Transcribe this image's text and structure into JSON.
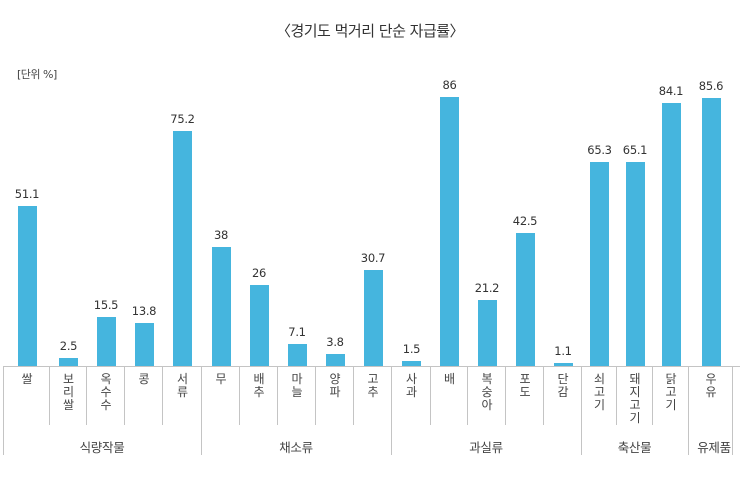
{
  "chart": {
    "title": "〈경기도 먹거리 단순 자급률〉",
    "unit_label": "[단위 %]",
    "bar_color": "#45B5DE"
  },
  "chart_data": {
    "type": "bar",
    "title": "〈경기도 먹거리 단순 자급률〉",
    "ylabel": "[단위 %]",
    "xlabel": "",
    "ylim": [
      0,
      100
    ],
    "grid": false,
    "legend": null,
    "categories": [
      "쌀",
      "보리쌀",
      "옥수수",
      "콩",
      "서류",
      "무",
      "배추",
      "마늘",
      "양파",
      "고추",
      "사과",
      "배",
      "복숭아",
      "포도",
      "단감",
      "쇠고기",
      "돼지고기",
      "닭고기",
      "우유"
    ],
    "values": [
      51.1,
      2.5,
      15.5,
      13.8,
      75.2,
      38,
      26,
      7.1,
      3.8,
      30.7,
      1.5,
      86,
      21.2,
      42.5,
      1.1,
      65.3,
      65.1,
      84.1,
      85.6
    ],
    "value_labels": [
      "51.1",
      "2.5",
      "15.5",
      "13.8",
      "75.2",
      "38",
      "26",
      "7.1",
      "3.8",
      "30.7",
      "1.5",
      "86",
      "21.2",
      "42.5",
      "1.1",
      "65.3",
      "65.1",
      "84.1",
      "85.6"
    ],
    "groups": [
      {
        "name": "식량작물",
        "items": [
          "쌀",
          "보리쌀",
          "옥수수",
          "콩",
          "서류"
        ]
      },
      {
        "name": "채소류",
        "items": [
          "무",
          "배추",
          "마늘",
          "양파",
          "고추"
        ]
      },
      {
        "name": "과실류",
        "items": [
          "사과",
          "배",
          "복숭아",
          "포도",
          "단감"
        ]
      },
      {
        "name": "축산물",
        "items": [
          "쇠고기",
          "돼지고기",
          "닭고기"
        ]
      },
      {
        "name": "유제품",
        "items": [
          "우유"
        ]
      }
    ]
  }
}
